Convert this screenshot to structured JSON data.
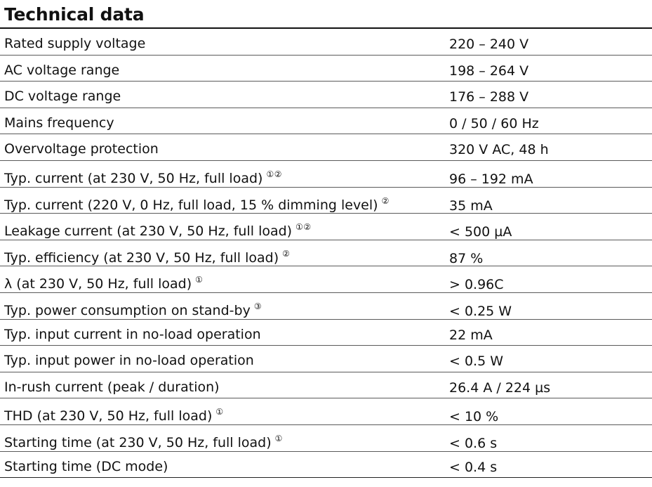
{
  "title": "Technical data",
  "rows": [
    {
      "param": "Rated supply voltage",
      "note": "",
      "value": "220 – 240 V"
    },
    {
      "param": "AC voltage range",
      "note": "",
      "value": "198 – 264 V"
    },
    {
      "param": "DC voltage range",
      "note": "",
      "value": "176 – 288 V"
    },
    {
      "param": "Mains frequency",
      "note": "",
      "value": "0 / 50 / 60 Hz"
    },
    {
      "param": "Overvoltage protection",
      "note": "",
      "value": "320 V AC, 48 h"
    },
    {
      "param": "Typ. current (at 230 V, 50 Hz, full load)",
      "note": "①②",
      "value": "96 – 192 mA"
    },
    {
      "param": "Typ. current (220 V, 0 Hz, full load, 15 % dimming level)",
      "note": "②",
      "value": "35 mA"
    },
    {
      "param": "Leakage current (at 230 V, 50 Hz, full load)",
      "note": "①②",
      "value": "< 500 µA"
    },
    {
      "param": "Typ. efficiency (at 230 V, 50 Hz, full load)",
      "note": "②",
      "value": "87 %"
    },
    {
      "param": "λ (at 230 V, 50 Hz, full load)",
      "note": "①",
      "value": "> 0.96C"
    },
    {
      "param": "Typ. power consumption on stand-by",
      "note": "③",
      "value": "< 0.25 W"
    },
    {
      "param": "Typ. input current in no-load operation",
      "note": "",
      "value": "22 mA"
    },
    {
      "param": "Typ. input power in no-load operation",
      "note": "",
      "value": "< 0.5 W"
    },
    {
      "param": "In-rush current (peak / duration)",
      "note": "",
      "value": "26.4 A / 224 µs"
    },
    {
      "param": "THD (at 230 V, 50 Hz, full load)",
      "note": "①",
      "value": "< 10 %"
    },
    {
      "param": "Starting time (at 230 V, 50 Hz, full load)",
      "note": "①",
      "value": "< 0.6 s"
    },
    {
      "param": "Starting time (DC mode)",
      "note": "",
      "value": "< 0.4 s"
    }
  ]
}
